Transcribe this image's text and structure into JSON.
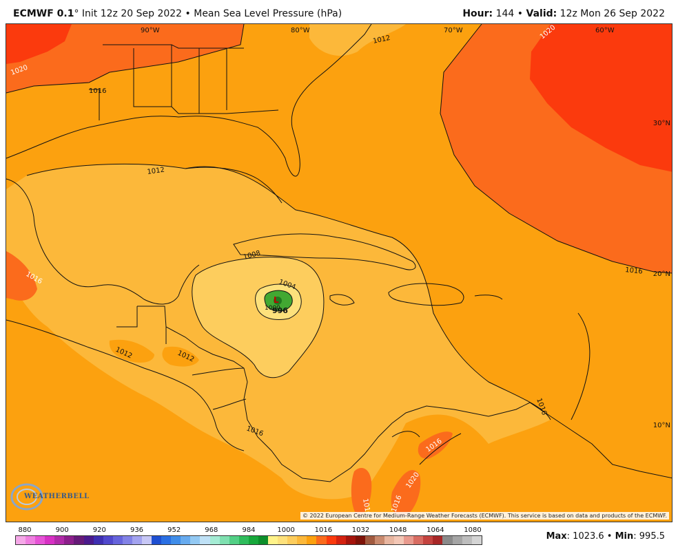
{
  "header": {
    "model": "ECMWF 0.1",
    "init_text": "° Init 12z 20 Sep 2022 • Mean Sea Level Pressure (hPa)",
    "hour_label": "Hour:",
    "hour_value": " 144 • ",
    "valid_label": "Valid:",
    "valid_value": " 12z Mon 26 Sep 2022"
  },
  "map": {
    "longitude_labels": [
      "90°W",
      "80°W",
      "70°W",
      "60°W"
    ],
    "latitude_labels": [
      "30°N",
      "20°N",
      "10°N"
    ],
    "isobar_labels": [
      "1020",
      "1016",
      "1012",
      "1012",
      "1020",
      "1016",
      "1008",
      "1004",
      "1000",
      "996",
      "1016",
      "1012",
      "1012",
      "1016",
      "1016",
      "1016",
      "1016",
      "1020",
      "1016"
    ],
    "low_marker": "L",
    "copyright": "© 2022 European Centre for Medium-Range Weather Forecasts (ECMWF). This service is based on data and products of the ECMWF.",
    "logo_text": "WEATHERBELL",
    "colors": {
      "p1012": "#fcb83a",
      "p1016": "#fca10f",
      "p1020": "#fb6b1c",
      "p1024": "#fb3a0d",
      "p1008": "#fdcd5d",
      "p1004": "#fde17c",
      "p1000": "#42a832",
      "p996": "#1f7a1f"
    }
  },
  "legend": {
    "tick_labels": [
      "880",
      "900",
      "920",
      "936",
      "952",
      "968",
      "984",
      "1000",
      "1016",
      "1032",
      "1048",
      "1064",
      "1080"
    ],
    "colors": [
      "#f5a8e8",
      "#ef7fe0",
      "#e653d6",
      "#d730c4",
      "#b12aa8",
      "#8c1f8b",
      "#661a78",
      "#4b1a8c",
      "#3e2fb1",
      "#5048cc",
      "#6664dc",
      "#8282e6",
      "#a3a3ef",
      "#c7c7f5",
      "#1e4fd1",
      "#2a6fe3",
      "#3f8de9",
      "#67abef",
      "#93c9f3",
      "#bfe1f6",
      "#a5ecd4",
      "#7fe0b0",
      "#52cf85",
      "#2fbc5c",
      "#17a83b",
      "#0d8e2a",
      "#fff38a",
      "#fde17c",
      "#fdcd5d",
      "#fcb83a",
      "#fca10f",
      "#fb6b1c",
      "#fb3a0d",
      "#d42210",
      "#a5140c",
      "#7d1208",
      "#a15a3f",
      "#c98a6e",
      "#e8b6a0",
      "#f3c7b6",
      "#e89a8e",
      "#d86c62",
      "#c4433f",
      "#a82727",
      "#8a8a8a",
      "#a5a5a5",
      "#bdbdbd",
      "#d4d4d4"
    ]
  },
  "stats": {
    "max_label": "Max",
    "max_value": ": 1023.6 • ",
    "min_label": "Min",
    "min_value": ": 995.5"
  }
}
